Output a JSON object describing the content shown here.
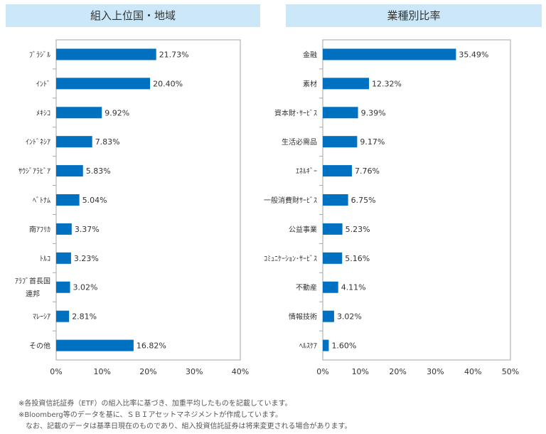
{
  "chart_data": [
    {
      "type": "bar",
      "orientation": "horizontal",
      "title": "組入上位国・地域",
      "categories": [
        "ﾌﾞﾗｼﾞﾙ",
        "ｲﾝﾄﾞ",
        "ﾒｷｼｺ",
        "ｲﾝﾄﾞﾈｼｱ",
        "ｻｳｼﾞｱﾗﾋﾞｱ",
        "ﾍﾞﾄﾅﾑ",
        "南ｱﾌﾘｶ",
        "ﾄﾙｺ",
        "ｱﾗﾌﾞ首長国\n連邦",
        "ﾏﾚｰｼｱ",
        "その他"
      ],
      "values": [
        21.73,
        20.4,
        9.92,
        7.83,
        5.83,
        5.04,
        3.37,
        3.23,
        3.02,
        2.81,
        16.82
      ],
      "labels": [
        "21.73%",
        "20.40%",
        "9.92%",
        "7.83%",
        "5.83%",
        "5.04%",
        "3.37%",
        "3.23%",
        "3.02%",
        "2.81%",
        "16.82%"
      ],
      "xlim": [
        0,
        40
      ],
      "xticks": [
        "0%",
        "10%",
        "20%",
        "30%",
        "40%"
      ],
      "grid": false,
      "bar_color": "#0070c0"
    },
    {
      "type": "bar",
      "orientation": "horizontal",
      "title": "業種別比率",
      "categories": [
        "金融",
        "素材",
        "資本財･ｻｰﾋﾞｽ",
        "生活必需品",
        "ｴﾈﾙｷﾞｰ",
        "一般消費財ｻｰﾋﾞｽ",
        "公益事業",
        "ｺﾐｭﾆｹｰｼｮﾝ･ｻｰﾋﾞｽ",
        "不動産",
        "情報技術",
        "ﾍﾙｽｹｱ"
      ],
      "values": [
        35.49,
        12.32,
        9.39,
        9.17,
        7.76,
        6.75,
        5.23,
        5.16,
        4.11,
        3.02,
        1.6
      ],
      "labels": [
        "35.49%",
        "12.32%",
        "9.39%",
        "9.17%",
        "7.76%",
        "6.75%",
        "5.23%",
        "5.16%",
        "4.11%",
        "3.02%",
        "1.60%"
      ],
      "xlim": [
        0,
        50
      ],
      "xticks": [
        "0%",
        "10%",
        "20%",
        "30%",
        "40%",
        "50%"
      ],
      "grid": false,
      "bar_color": "#0070c0"
    }
  ],
  "header_color": "#cce8f8",
  "notes": [
    "※各投資信託証券（ETF）の組入比率に基づき、加重平均したものを記載しています。",
    "※Bloomberg等のデータを基に、ＳＢＩアセットマネジメントが作成しています。",
    "　なお、記載のデータは基準日現在のものであり、組入投資信託証券は将来変更される場合があります。"
  ]
}
